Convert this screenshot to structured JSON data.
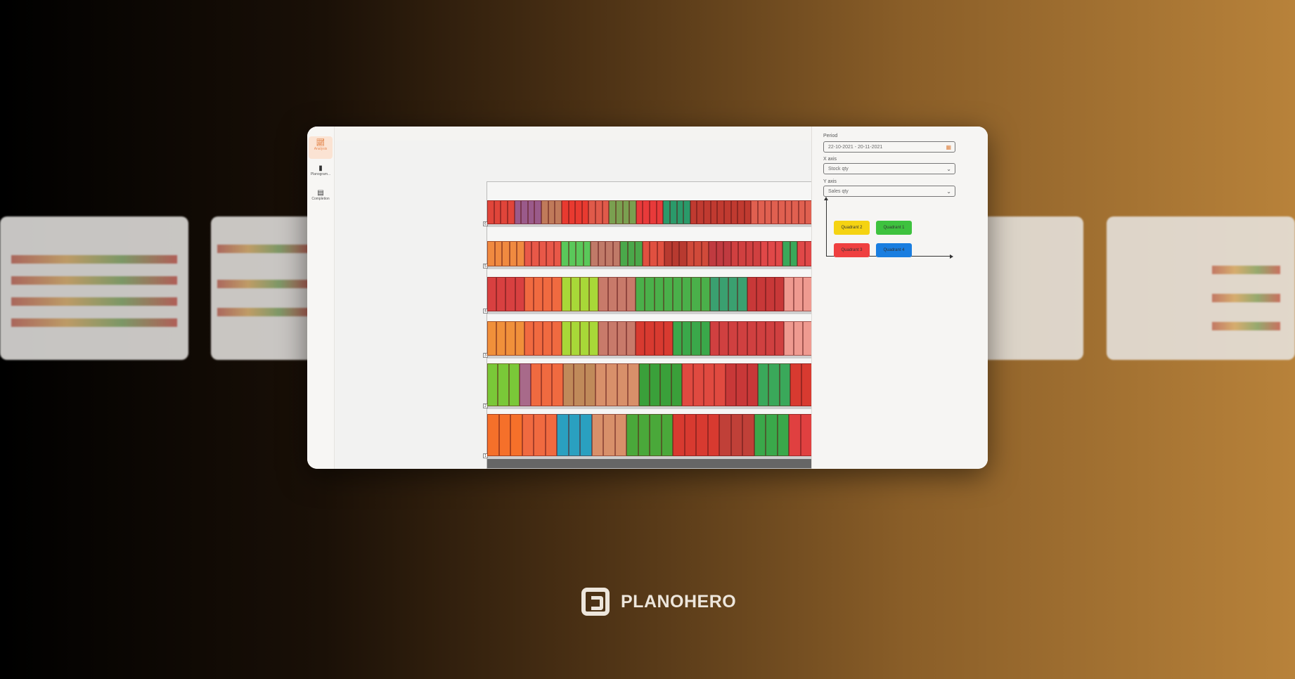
{
  "sidebar": {
    "items": [
      {
        "label": "Analysis",
        "icon": "chart-icon",
        "active": true
      },
      {
        "label": "Planogram...",
        "icon": "book-icon",
        "active": false
      },
      {
        "label": "Completion",
        "icon": "table-icon",
        "active": false
      }
    ]
  },
  "panel": {
    "period_label": "Period",
    "period_value": "22-10-2021 - 20-11-2021",
    "x_axis_label": "X axis",
    "x_axis_value": "Stock qty",
    "y_axis_label": "Y axis",
    "y_axis_value": "Sales qty",
    "quadrants": [
      {
        "label": "Quadrant 2",
        "color": "#f5d312"
      },
      {
        "label": "Quadrant 1",
        "color": "#3ec23e"
      },
      {
        "label": "Quadrant 3",
        "color": "#ef4040"
      },
      {
        "label": "Quadrant 4",
        "color": "#1a7ee0"
      }
    ]
  },
  "planogram": {
    "shelves": [
      {
        "number": "6",
        "groups": [
          [
            "#e0453a",
            4
          ],
          [
            "#9a5a8a",
            4
          ],
          [
            "#c07a5a",
            3
          ],
          [
            "#e83a30",
            4
          ],
          [
            "#e05a4a",
            3
          ],
          [
            "#7aa050",
            4
          ],
          [
            "#e83a3a",
            4
          ],
          [
            "#2a9a6a",
            4
          ],
          [
            "#c03a30",
            9
          ],
          [
            "#e06050",
            9
          ]
        ]
      },
      {
        "number": "5",
        "groups": [
          [
            "#f08a40",
            5
          ],
          [
            "#e85848",
            5
          ],
          [
            "#5ac85a",
            4
          ],
          [
            "#c07a68",
            4
          ],
          [
            "#4aa84a",
            3
          ],
          [
            "#e05040",
            3
          ],
          [
            "#b83a30",
            3
          ],
          [
            "#d04a3a",
            3
          ],
          [
            "#c03a40",
            3
          ],
          [
            "#d04040",
            4
          ],
          [
            "#e04848",
            3
          ],
          [
            "#3aa85a",
            2
          ],
          [
            "#e04848",
            2
          ]
        ]
      },
      {
        "number": "4",
        "groups": [
          [
            "#d84040",
            4
          ],
          [
            "#f06a40",
            4
          ],
          [
            "#a8d838",
            4
          ],
          [
            "#c87a6a",
            4
          ],
          [
            "#4ab04a",
            8
          ],
          [
            "#3aa070",
            4
          ],
          [
            "#c83838",
            4
          ],
          [
            "#ef9a90",
            3
          ]
        ]
      },
      {
        "number": "3",
        "groups": [
          [
            "#f0903a",
            4
          ],
          [
            "#f06a40",
            4
          ],
          [
            "#a8d838",
            4
          ],
          [
            "#c87a6a",
            4
          ],
          [
            "#d83a30",
            4
          ],
          [
            "#3aa84a",
            4
          ],
          [
            "#d04040",
            4
          ],
          [
            "#d04040",
            4
          ],
          [
            "#ef9a90",
            3
          ]
        ]
      },
      {
        "number": "2",
        "groups": [
          [
            "#7ac838",
            3
          ],
          [
            "#a86a8a",
            1
          ],
          [
            "#f06a40",
            3
          ],
          [
            "#c08a5a",
            3
          ],
          [
            "#d8906a",
            4
          ],
          [
            "#3aa03a",
            4
          ],
          [
            "#e04a40",
            4
          ],
          [
            "#c83838",
            3
          ],
          [
            "#3aa85a",
            3
          ],
          [
            "#d83a30",
            2
          ]
        ]
      },
      {
        "number": "1",
        "groups": [
          [
            "#f5702a",
            3
          ],
          [
            "#f06a40",
            3
          ],
          [
            "#2aa0c0",
            3
          ],
          [
            "#d8906a",
            3
          ],
          [
            "#4aa83a",
            4
          ],
          [
            "#d83a30",
            4
          ],
          [
            "#c04038",
            3
          ],
          [
            "#3aa84a",
            3
          ],
          [
            "#e04040",
            2
          ]
        ]
      }
    ]
  },
  "brand": {
    "name": "PLANOHERO"
  }
}
